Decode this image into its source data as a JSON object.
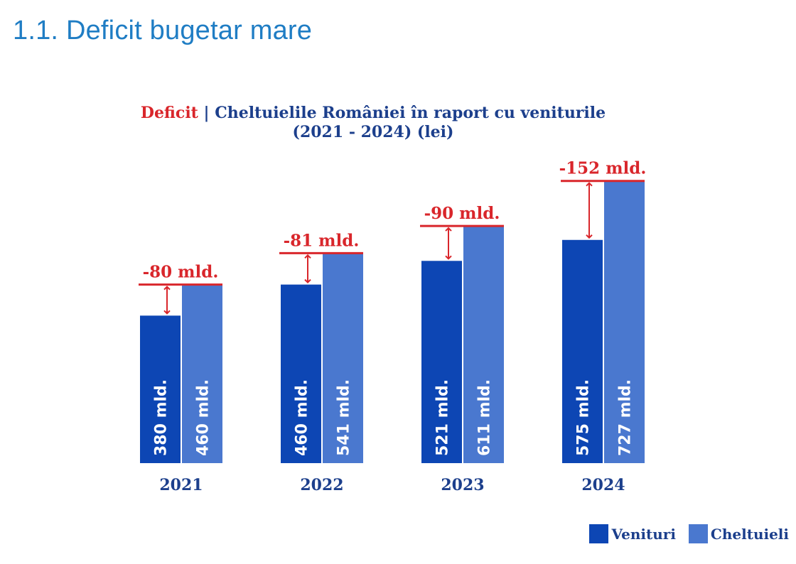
{
  "page": {
    "heading": "1.1. Deficit bugetar mare"
  },
  "chart_data": {
    "type": "bar",
    "title_highlight": "Deficit",
    "title_separator": " | ",
    "title_rest": "Cheltuielile României în raport cu veniturile",
    "subtitle": "(2021 - 2024) (lei)",
    "categories": [
      "2021",
      "2022",
      "2023",
      "2024"
    ],
    "series": [
      {
        "name": "Venituri",
        "color": "#0d46b4",
        "values": [
          380,
          460,
          521,
          575
        ],
        "labels": [
          "380 mld.",
          "460 mld.",
          "521 mld.",
          "575 mld."
        ]
      },
      {
        "name": "Cheltuieli",
        "color": "#4a78cf",
        "values": [
          460,
          541,
          611,
          727
        ],
        "labels": [
          "460 mld.",
          "541 mld.",
          "611 mld.",
          "727 mld."
        ]
      }
    ],
    "deficit_labels": [
      "-80 mld.",
      "-81 mld.",
      "-90 mld.",
      "-152 mld."
    ],
    "deficit_color": "#d9262b",
    "unit": "mld. lei",
    "legend_position": "bottom-right",
    "grid": false,
    "axes_visible": false
  }
}
